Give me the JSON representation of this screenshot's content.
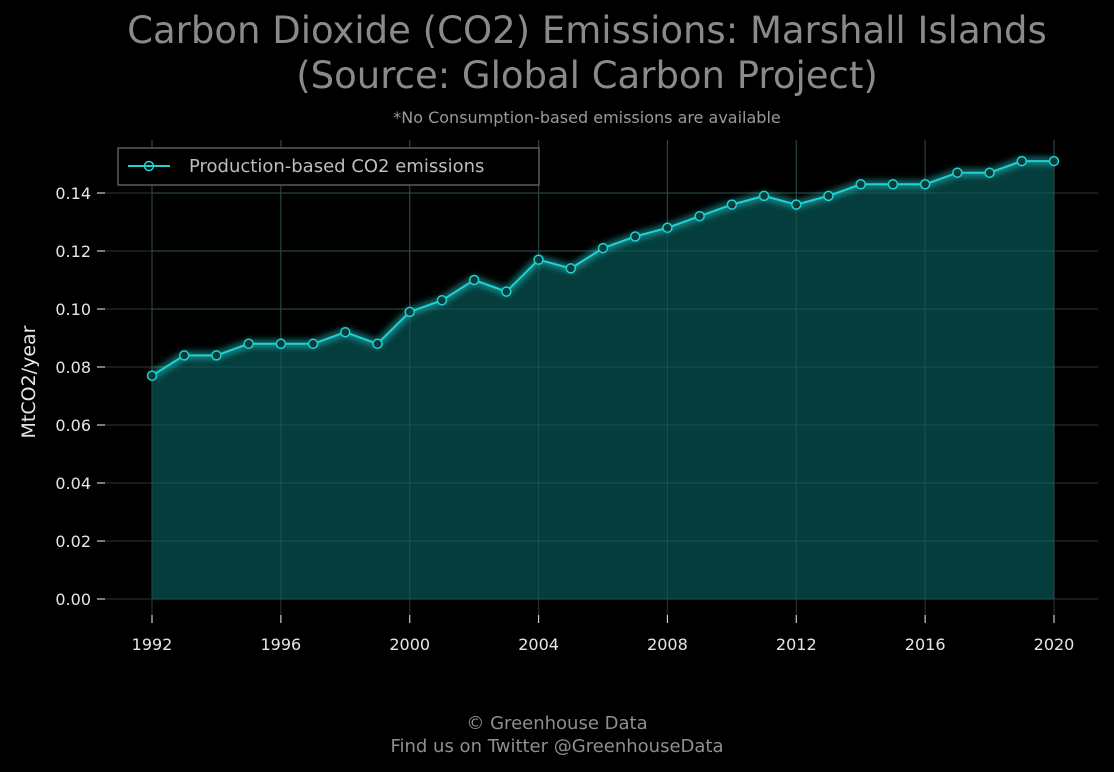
{
  "chart_data": {
    "type": "area",
    "title_lines": [
      "Carbon Dioxide (CO2) Emissions: Marshall Islands",
      "(Source: Global Carbon Project)"
    ],
    "subtitle": "*No Consumption-based emissions are available",
    "ylabel": "MtCO2/year",
    "xlabel": "",
    "xlim": [
      1992,
      2020
    ],
    "ylim": [
      0,
      0.155
    ],
    "x_ticks": [
      1992,
      1996,
      2000,
      2004,
      2008,
      2012,
      2016,
      2020
    ],
    "y_ticks": [
      0.0,
      0.02,
      0.04,
      0.06,
      0.08,
      0.1,
      0.12,
      0.14
    ],
    "y_tick_labels": [
      "0.00",
      "0.02",
      "0.04",
      "0.06",
      "0.08",
      "0.10",
      "0.12",
      "0.14"
    ],
    "grid": true,
    "legend_position": "top-left",
    "series": [
      {
        "name": "Production-based CO2 emissions",
        "color": "#1fd1d1",
        "fill_color": "#064646",
        "x": [
          1992,
          1993,
          1994,
          1995,
          1996,
          1997,
          1998,
          1999,
          2000,
          2001,
          2002,
          2003,
          2004,
          2005,
          2006,
          2007,
          2008,
          2009,
          2010,
          2011,
          2012,
          2013,
          2014,
          2015,
          2016,
          2017,
          2018,
          2019,
          2020
        ],
        "values": [
          0.077,
          0.084,
          0.084,
          0.088,
          0.088,
          0.088,
          0.092,
          0.088,
          0.099,
          0.103,
          0.11,
          0.106,
          0.117,
          0.114,
          0.121,
          0.125,
          0.128,
          0.132,
          0.136,
          0.139,
          0.136,
          0.139,
          0.143,
          0.143,
          0.143,
          0.147,
          0.147,
          0.151,
          0.151
        ]
      }
    ]
  },
  "footer": {
    "line1": "© Greenhouse Data",
    "line2": "Find us on Twitter @GreenhouseData"
  }
}
